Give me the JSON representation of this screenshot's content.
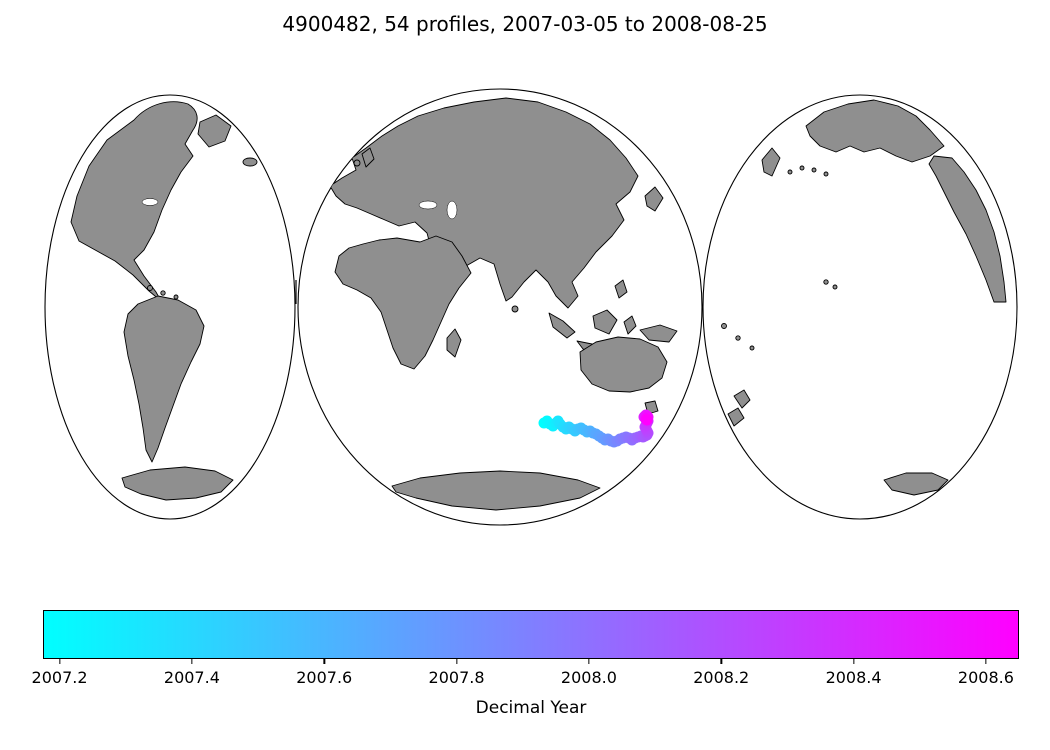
{
  "title": "4900482, 54 profiles, 2007-03-05 to 2008-08-25",
  "map": {
    "projection": "interrupted-mollweide-3-lobes",
    "land_color": "#8f8f8f",
    "ocean_color": "#ffffff",
    "outline_color": "#000000"
  },
  "chart_data": {
    "type": "scatter",
    "title": "4900482, 54 profiles, 2007-03-05 to 2008-08-25",
    "float_id": "4900482",
    "profiles_count": 54,
    "date_start": "2007-03-05",
    "date_end": "2008-08-25",
    "colorbar": {
      "label": "Decimal Year",
      "orientation": "horizontal",
      "cmap": "cool",
      "cmap_colors": [
        "#00ffff",
        "#ff00ff"
      ],
      "vmin": 2007.175,
      "vmax": 2008.65,
      "ticks": [
        {
          "value": 2007.2,
          "label": "2007.2"
        },
        {
          "value": 2007.4,
          "label": "2007.4"
        },
        {
          "value": 2007.6,
          "label": "2007.6"
        },
        {
          "value": 2007.8,
          "label": "2007.8"
        },
        {
          "value": 2008.0,
          "label": "2008.0"
        },
        {
          "value": 2008.2,
          "label": "2008.2"
        },
        {
          "value": 2008.4,
          "label": "2008.4"
        },
        {
          "value": 2008.6,
          "label": "2008.6"
        }
      ]
    },
    "trajectory": {
      "region": "Southern Ocean, south of Australia / Tasmania",
      "color_by": "decimal year of profile",
      "t_range": [
        2007.175,
        2008.65
      ],
      "points": [
        [
          544,
          423
        ],
        [
          547,
          421
        ],
        [
          550,
          424
        ],
        [
          553,
          426
        ],
        [
          556,
          423
        ],
        [
          558,
          421
        ],
        [
          560,
          424
        ],
        [
          563,
          427
        ],
        [
          566,
          429
        ],
        [
          569,
          427
        ],
        [
          572,
          429
        ],
        [
          575,
          431
        ],
        [
          578,
          429
        ],
        [
          581,
          428
        ],
        [
          584,
          430
        ],
        [
          587,
          432
        ],
        [
          590,
          431
        ],
        [
          593,
          433
        ],
        [
          596,
          434
        ],
        [
          599,
          436
        ],
        [
          602,
          438
        ],
        [
          605,
          440
        ],
        [
          608,
          439
        ],
        [
          611,
          441
        ],
        [
          614,
          442
        ],
        [
          617,
          441
        ],
        [
          620,
          439
        ],
        [
          623,
          438
        ],
        [
          626,
          437
        ],
        [
          629,
          438
        ],
        [
          632,
          440
        ],
        [
          635,
          438
        ],
        [
          638,
          437
        ],
        [
          641,
          436
        ],
        [
          643,
          437
        ],
        [
          645,
          436
        ],
        [
          647,
          435
        ],
        [
          648,
          433
        ],
        [
          647,
          431
        ],
        [
          646,
          429
        ],
        [
          645,
          427
        ],
        [
          646,
          425
        ],
        [
          647,
          423
        ],
        [
          648,
          421
        ],
        [
          647,
          419
        ],
        [
          645,
          418
        ],
        [
          644,
          417
        ],
        [
          645,
          416
        ],
        [
          646,
          415
        ],
        [
          647,
          416
        ],
        [
          648,
          417
        ],
        [
          647,
          418
        ],
        [
          646,
          419
        ],
        [
          647,
          420
        ]
      ]
    }
  }
}
